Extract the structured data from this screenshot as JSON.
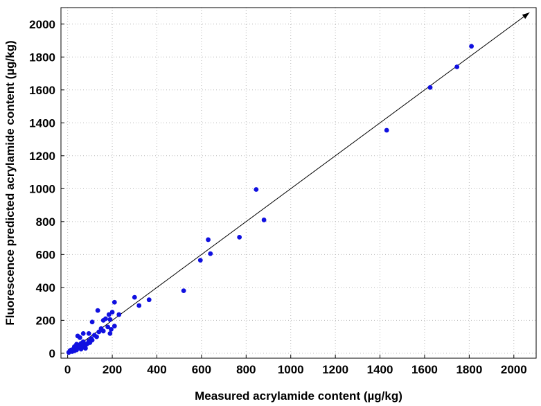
{
  "chart_data": {
    "type": "scatter",
    "title": "",
    "xlabel": "Measured acrylamide content (µg/kg)",
    "ylabel": "Fluorescence predicted acrylamide content (µg/kg)",
    "xlim": [
      -30,
      2100
    ],
    "ylim": [
      -30,
      2100
    ],
    "xticks": [
      "0",
      "200",
      "400",
      "600",
      "800",
      "1000",
      "1200",
      "1400",
      "1600",
      "1800",
      "2000"
    ],
    "yticks": [
      "0",
      "200",
      "400",
      "600",
      "800",
      "1000",
      "1200",
      "1400",
      "1600",
      "1800",
      "2000"
    ],
    "grid": true,
    "reference_line": {
      "from": [
        0,
        0
      ],
      "to": [
        2070,
        2070
      ],
      "arrow": true
    },
    "marker_color": "#1010e0",
    "points": [
      {
        "x": 5,
        "y": 5
      },
      {
        "x": 10,
        "y": 15
      },
      {
        "x": 15,
        "y": 20
      },
      {
        "x": 20,
        "y": 10
      },
      {
        "x": 25,
        "y": 25
      },
      {
        "x": 30,
        "y": 15
      },
      {
        "x": 35,
        "y": 30
      },
      {
        "x": 40,
        "y": 20
      },
      {
        "x": 45,
        "y": 35
      },
      {
        "x": 50,
        "y": 50
      },
      {
        "x": 55,
        "y": 40
      },
      {
        "x": 60,
        "y": 60
      },
      {
        "x": 65,
        "y": 35
      },
      {
        "x": 70,
        "y": 70
      },
      {
        "x": 75,
        "y": 45
      },
      {
        "x": 80,
        "y": 30
      },
      {
        "x": 85,
        "y": 55
      },
      {
        "x": 90,
        "y": 60
      },
      {
        "x": 95,
        "y": 75
      },
      {
        "x": 100,
        "y": 65
      },
      {
        "x": 105,
        "y": 90
      },
      {
        "x": 110,
        "y": 80
      },
      {
        "x": 120,
        "y": 110
      },
      {
        "x": 130,
        "y": 100
      },
      {
        "x": 140,
        "y": 130
      },
      {
        "x": 150,
        "y": 150
      },
      {
        "x": 160,
        "y": 135
      },
      {
        "x": 170,
        "y": 210
      },
      {
        "x": 180,
        "y": 160
      },
      {
        "x": 190,
        "y": 120
      },
      {
        "x": 200,
        "y": 250
      },
      {
        "x": 210,
        "y": 165
      },
      {
        "x": 210,
        "y": 310
      },
      {
        "x": 230,
        "y": 235
      },
      {
        "x": 45,
        "y": 105
      },
      {
        "x": 55,
        "y": 95
      },
      {
        "x": 70,
        "y": 120
      },
      {
        "x": 95,
        "y": 120
      },
      {
        "x": 110,
        "y": 190
      },
      {
        "x": 135,
        "y": 260
      },
      {
        "x": 160,
        "y": 200
      },
      {
        "x": 190,
        "y": 205
      },
      {
        "x": 185,
        "y": 235
      },
      {
        "x": 195,
        "y": 145
      },
      {
        "x": 80,
        "y": 50
      },
      {
        "x": 60,
        "y": 25
      },
      {
        "x": 40,
        "y": 55
      },
      {
        "x": 30,
        "y": 40
      },
      {
        "x": 300,
        "y": 340
      },
      {
        "x": 320,
        "y": 290
      },
      {
        "x": 365,
        "y": 325
      },
      {
        "x": 520,
        "y": 380
      },
      {
        "x": 595,
        "y": 565
      },
      {
        "x": 630,
        "y": 690
      },
      {
        "x": 640,
        "y": 605
      },
      {
        "x": 770,
        "y": 705
      },
      {
        "x": 845,
        "y": 995
      },
      {
        "x": 880,
        "y": 810
      },
      {
        "x": 1430,
        "y": 1355
      },
      {
        "x": 1625,
        "y": 1615
      },
      {
        "x": 1745,
        "y": 1740
      },
      {
        "x": 1810,
        "y": 1865
      }
    ]
  }
}
